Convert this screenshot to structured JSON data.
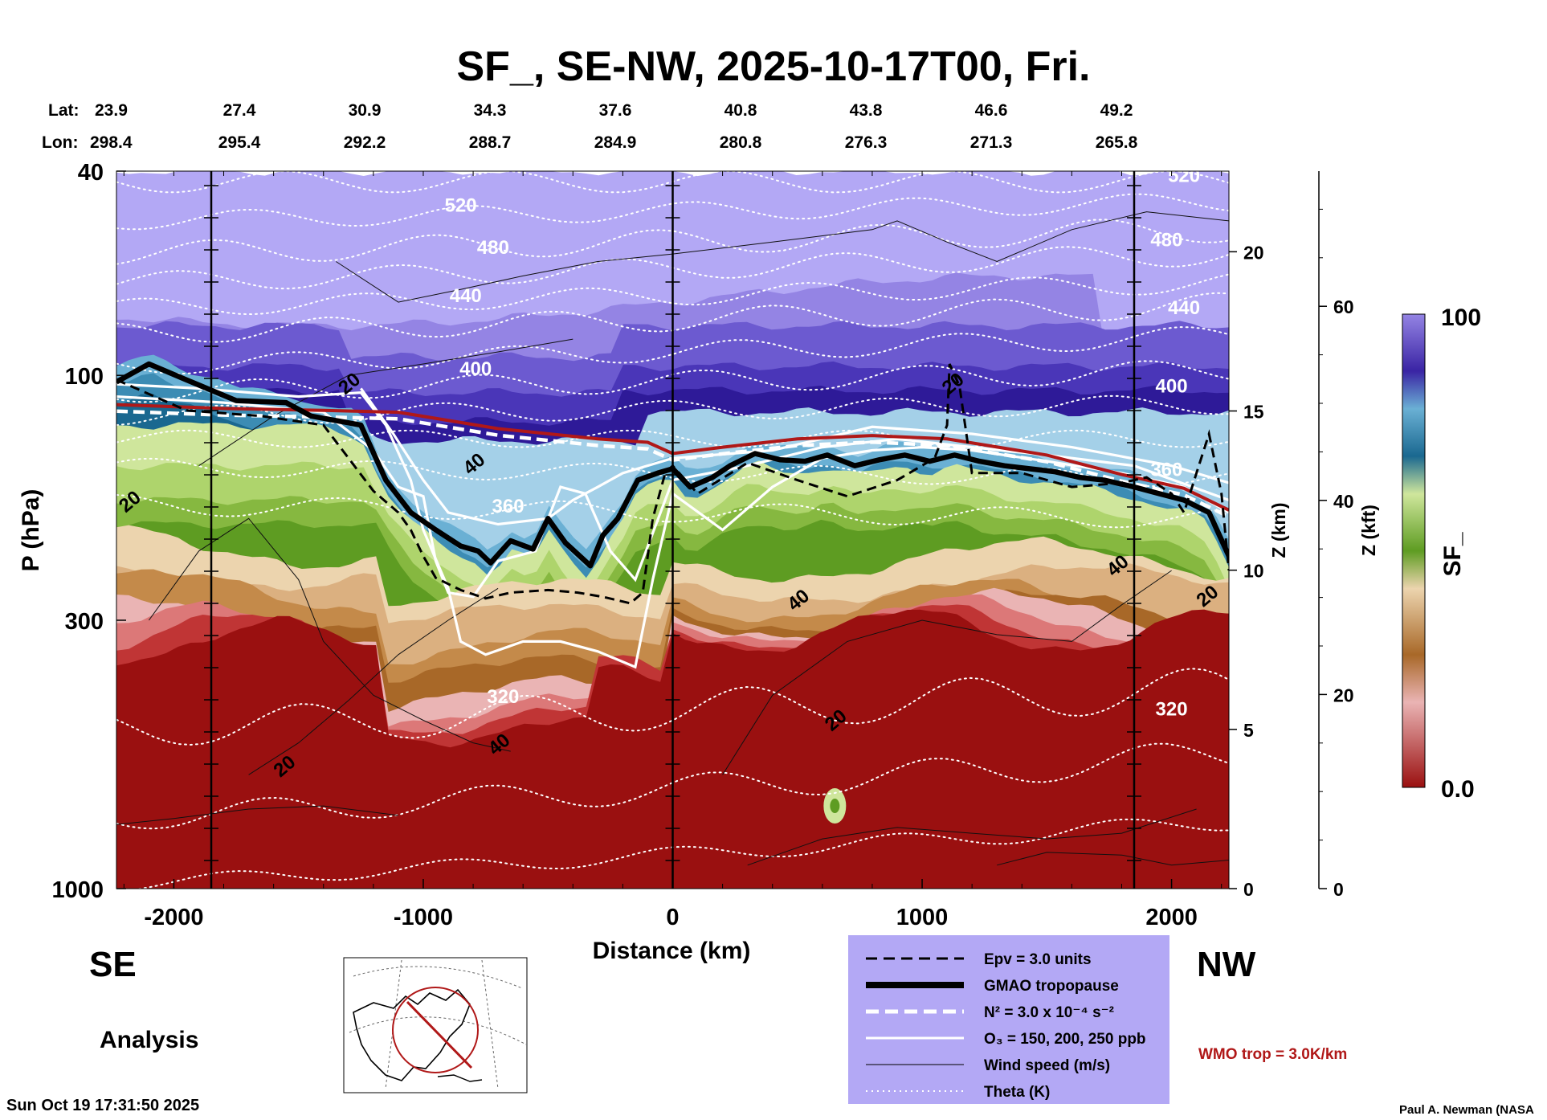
{
  "title": "SF_, SE-NW, 2025-10-17T00, Fri.",
  "lat_label": "Lat:",
  "lon_label": "Lon:",
  "latitudes": [
    "23.9",
    "27.4",
    "30.9",
    "34.3",
    "37.6",
    "40.8",
    "43.8",
    "46.6",
    "49.2"
  ],
  "longitudes": [
    "298.4",
    "295.4",
    "292.2",
    "288.7",
    "284.9",
    "280.8",
    "276.3",
    "271.3",
    "265.8"
  ],
  "side_left": "SE",
  "side_right": "NW",
  "analysis_label": "Analysis",
  "timestamp": "Sun Oct 19 17:31:50 2025",
  "credit": "Paul A. Newman (NASA",
  "wmo_note": "WMO trop = 3.0K/km",
  "legend": [
    {
      "style": "epv",
      "label": "Epv = 3.0 units"
    },
    {
      "style": "tropopause",
      "label": "GMAO tropopause"
    },
    {
      "style": "n2",
      "label": "N² = 3.0 x 10⁻⁴ s⁻²"
    },
    {
      "style": "o3",
      "label": "O₃ = 150, 200, 250 ppb"
    },
    {
      "style": "wind",
      "label": "Wind speed (m/s)"
    },
    {
      "style": "theta",
      "label": "Theta (K)"
    }
  ],
  "colors": {
    "legend_bg": "#b3a8f5",
    "wmo": "#b01818",
    "theta": "#ffffff"
  },
  "chart_data": {
    "type": "heatmap",
    "variable": "SF_",
    "xlabel": "Distance (km)",
    "ylabel": "P (hPa)",
    "y2label": "Z (km)",
    "y3label": "Z (kft)",
    "colorbar_label": "SF_",
    "xlim": [
      -2230,
      2230
    ],
    "ylim": [
      1000,
      40
    ],
    "y_scale": "log",
    "x_ticks": [
      -2000,
      -1000,
      0,
      1000,
      2000
    ],
    "y_ticks": [
      40,
      100,
      300,
      1000
    ],
    "zkm_ticks": [
      0,
      5,
      10,
      15,
      20
    ],
    "zkft_ticks": [
      0,
      20,
      40,
      60
    ],
    "colorbar_range": [
      0.0,
      100
    ],
    "colorbar_tick_labels": [
      "100",
      "0.0"
    ],
    "colorbar_colors": [
      "#9a1010",
      "#c03535",
      "#dc7878",
      "#eab4b4",
      "#a86828",
      "#c48a4a",
      "#dbb080",
      "#ecd4ae",
      "#5e9c22",
      "#86b840",
      "#aed46c",
      "#cfe69c",
      "#1a6890",
      "#3c8cb4",
      "#6ab0d4",
      "#a4d0e8",
      "#2e1a98",
      "#4a36b8",
      "#6c5ad0",
      "#9484e4"
    ],
    "vertical_lines_km": [
      -1850,
      0,
      1850
    ],
    "theta_labels": [
      {
        "value": "520",
        "x": -850,
        "p": 48
      },
      {
        "value": "480",
        "x": -720,
        "p": 58
      },
      {
        "value": "440",
        "x": -830,
        "p": 72
      },
      {
        "value": "400",
        "x": -790,
        "p": 100
      },
      {
        "value": "360",
        "x": -660,
        "p": 185
      },
      {
        "value": "320",
        "x": -680,
        "p": 435
      },
      {
        "value": "520",
        "x": 2050,
        "p": 42
      },
      {
        "value": "480",
        "x": 1980,
        "p": 56
      },
      {
        "value": "440",
        "x": 2050,
        "p": 76
      },
      {
        "value": "400",
        "x": 2000,
        "p": 108
      },
      {
        "value": "360",
        "x": 1980,
        "p": 157
      },
      {
        "value": "320",
        "x": 2000,
        "p": 460
      }
    ],
    "wind_labels": [
      {
        "value": "20",
        "x": -2160,
        "p": 180
      },
      {
        "value": "20",
        "x": -1280,
        "p": 106
      },
      {
        "value": "40",
        "x": -780,
        "p": 152
      },
      {
        "value": "40",
        "x": -680,
        "p": 535
      },
      {
        "value": "20",
        "x": -1540,
        "p": 590
      },
      {
        "value": "40",
        "x": 520,
        "p": 280
      },
      {
        "value": "20",
        "x": 1140,
        "p": 106
      },
      {
        "value": "20",
        "x": 670,
        "p": 480
      },
      {
        "value": "40",
        "x": 1800,
        "p": 240
      },
      {
        "value": "20",
        "x": 2160,
        "p": 275
      }
    ],
    "gmao_tropopause": [
      [
        -2230,
        103
      ],
      [
        -2100,
        95
      ],
      [
        -1950,
        102
      ],
      [
        -1750,
        112
      ],
      [
        -1550,
        113
      ],
      [
        -1450,
        120
      ],
      [
        -1250,
        125
      ],
      [
        -1150,
        160
      ],
      [
        -1050,
        185
      ],
      [
        -950,
        200
      ],
      [
        -850,
        215
      ],
      [
        -780,
        220
      ],
      [
        -730,
        232
      ],
      [
        -650,
        210
      ],
      [
        -560,
        218
      ],
      [
        -500,
        190
      ],
      [
        -430,
        212
      ],
      [
        -330,
        235
      ],
      [
        -280,
        205
      ],
      [
        -220,
        190
      ],
      [
        -140,
        160
      ],
      [
        -60,
        155
      ],
      [
        0,
        152
      ],
      [
        70,
        165
      ],
      [
        160,
        158
      ],
      [
        230,
        150
      ],
      [
        330,
        142
      ],
      [
        430,
        146
      ],
      [
        530,
        147
      ],
      [
        620,
        143
      ],
      [
        730,
        150
      ],
      [
        830,
        146
      ],
      [
        930,
        143
      ],
      [
        1030,
        147
      ],
      [
        1130,
        143
      ],
      [
        1230,
        147
      ],
      [
        1330,
        150
      ],
      [
        1430,
        152
      ],
      [
        1530,
        154
      ],
      [
        1630,
        158
      ],
      [
        1730,
        160
      ],
      [
        1850,
        165
      ],
      [
        1950,
        170
      ],
      [
        2050,
        175
      ],
      [
        2150,
        185
      ],
      [
        2230,
        225
      ]
    ],
    "wmo_tropopause": [
      [
        -2230,
        114
      ],
      [
        -1800,
        116
      ],
      [
        -1400,
        117
      ],
      [
        -1100,
        118
      ],
      [
        -700,
        127
      ],
      [
        -300,
        133
      ],
      [
        -100,
        135
      ],
      [
        0,
        142
      ],
      [
        200,
        138
      ],
      [
        500,
        133
      ],
      [
        800,
        131
      ],
      [
        1100,
        133
      ],
      [
        1500,
        143
      ],
      [
        1800,
        156
      ],
      [
        2050,
        166
      ],
      [
        2230,
        183
      ]
    ],
    "epv_3pvu": [
      [
        -2230,
        102
      ],
      [
        -1950,
        117
      ],
      [
        -1650,
        120
      ],
      [
        -1400,
        125
      ],
      [
        -1200,
        168
      ],
      [
        -1100,
        185
      ],
      [
        -1050,
        200
      ],
      [
        -1000,
        225
      ],
      [
        -950,
        248
      ],
      [
        -850,
        262
      ],
      [
        -750,
        272
      ],
      [
        -650,
        265
      ],
      [
        -500,
        262
      ],
      [
        -380,
        265
      ],
      [
        -280,
        270
      ],
      [
        -170,
        278
      ],
      [
        -120,
        265
      ],
      [
        -100,
        225
      ],
      [
        -80,
        190
      ],
      [
        -30,
        155
      ],
      [
        0,
        150
      ],
      [
        100,
        170
      ],
      [
        300,
        148
      ],
      [
        500,
        160
      ],
      [
        700,
        172
      ],
      [
        900,
        160
      ],
      [
        1050,
        145
      ],
      [
        1100,
        125
      ],
      [
        1110,
        95
      ],
      [
        1150,
        105
      ],
      [
        1200,
        155
      ],
      [
        1400,
        155
      ],
      [
        1600,
        165
      ],
      [
        1800,
        162
      ],
      [
        1900,
        158
      ],
      [
        2000,
        170
      ],
      [
        2050,
        185
      ],
      [
        2100,
        155
      ],
      [
        2150,
        130
      ],
      [
        2200,
        170
      ],
      [
        2230,
        240
      ]
    ]
  }
}
